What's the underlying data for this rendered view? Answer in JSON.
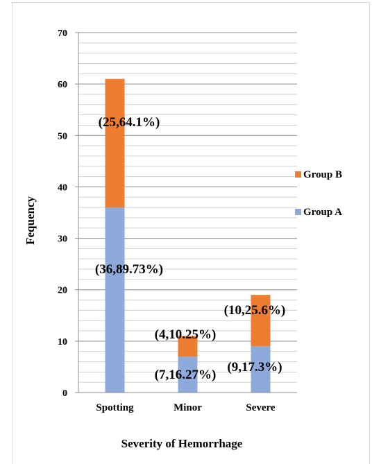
{
  "chart_data": {
    "type": "bar",
    "stacked": true,
    "categories": [
      "Spotting",
      "Minor",
      "Severe"
    ],
    "series": [
      {
        "name": "Group A",
        "color": "#8eaadb",
        "values": [
          36,
          7,
          9
        ],
        "labels": [
          "(36,89.73%)",
          "(7,16.27%)",
          "(9,17.3%)"
        ]
      },
      {
        "name": "Group B",
        "color": "#ed7d31",
        "values": [
          25,
          4,
          10
        ],
        "labels": [
          "(25,64.1%)",
          "(4,10.25%)",
          "(10,25.6%)"
        ]
      }
    ],
    "xlabel": "Severity of Hemorrhage",
    "ylabel": "Fequency",
    "ylim": [
      0,
      70
    ],
    "yticks": [
      0,
      10,
      20,
      30,
      40,
      50,
      60,
      70
    ],
    "grid": true,
    "minor_grid": true,
    "legend": {
      "position": "right",
      "order": [
        "Group B",
        "Group A"
      ]
    }
  }
}
